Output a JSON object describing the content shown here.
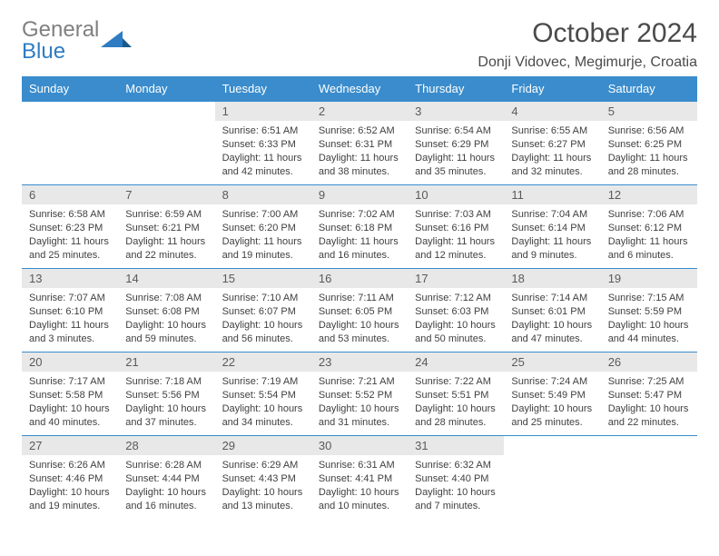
{
  "logo": {
    "text_top": "General",
    "text_bottom": "Blue"
  },
  "title": "October 2024",
  "location": "Donji Vidovec, Megimurje, Croatia",
  "colors": {
    "header_bg": "#3a8ccc",
    "header_text": "#ffffff",
    "daynum_bg": "#e8e8e8",
    "rule": "#3a8ccc",
    "text": "#404040",
    "logo_gray": "#808080",
    "logo_blue": "#2e7cc2"
  },
  "day_headers": [
    "Sunday",
    "Monday",
    "Tuesday",
    "Wednesday",
    "Thursday",
    "Friday",
    "Saturday"
  ],
  "weeks": [
    [
      {
        "n": "",
        "sr": "",
        "ss": "",
        "dl": ""
      },
      {
        "n": "",
        "sr": "",
        "ss": "",
        "dl": ""
      },
      {
        "n": "1",
        "sr": "Sunrise: 6:51 AM",
        "ss": "Sunset: 6:33 PM",
        "dl": "Daylight: 11 hours and 42 minutes."
      },
      {
        "n": "2",
        "sr": "Sunrise: 6:52 AM",
        "ss": "Sunset: 6:31 PM",
        "dl": "Daylight: 11 hours and 38 minutes."
      },
      {
        "n": "3",
        "sr": "Sunrise: 6:54 AM",
        "ss": "Sunset: 6:29 PM",
        "dl": "Daylight: 11 hours and 35 minutes."
      },
      {
        "n": "4",
        "sr": "Sunrise: 6:55 AM",
        "ss": "Sunset: 6:27 PM",
        "dl": "Daylight: 11 hours and 32 minutes."
      },
      {
        "n": "5",
        "sr": "Sunrise: 6:56 AM",
        "ss": "Sunset: 6:25 PM",
        "dl": "Daylight: 11 hours and 28 minutes."
      }
    ],
    [
      {
        "n": "6",
        "sr": "Sunrise: 6:58 AM",
        "ss": "Sunset: 6:23 PM",
        "dl": "Daylight: 11 hours and 25 minutes."
      },
      {
        "n": "7",
        "sr": "Sunrise: 6:59 AM",
        "ss": "Sunset: 6:21 PM",
        "dl": "Daylight: 11 hours and 22 minutes."
      },
      {
        "n": "8",
        "sr": "Sunrise: 7:00 AM",
        "ss": "Sunset: 6:20 PM",
        "dl": "Daylight: 11 hours and 19 minutes."
      },
      {
        "n": "9",
        "sr": "Sunrise: 7:02 AM",
        "ss": "Sunset: 6:18 PM",
        "dl": "Daylight: 11 hours and 16 minutes."
      },
      {
        "n": "10",
        "sr": "Sunrise: 7:03 AM",
        "ss": "Sunset: 6:16 PM",
        "dl": "Daylight: 11 hours and 12 minutes."
      },
      {
        "n": "11",
        "sr": "Sunrise: 7:04 AM",
        "ss": "Sunset: 6:14 PM",
        "dl": "Daylight: 11 hours and 9 minutes."
      },
      {
        "n": "12",
        "sr": "Sunrise: 7:06 AM",
        "ss": "Sunset: 6:12 PM",
        "dl": "Daylight: 11 hours and 6 minutes."
      }
    ],
    [
      {
        "n": "13",
        "sr": "Sunrise: 7:07 AM",
        "ss": "Sunset: 6:10 PM",
        "dl": "Daylight: 11 hours and 3 minutes."
      },
      {
        "n": "14",
        "sr": "Sunrise: 7:08 AM",
        "ss": "Sunset: 6:08 PM",
        "dl": "Daylight: 10 hours and 59 minutes."
      },
      {
        "n": "15",
        "sr": "Sunrise: 7:10 AM",
        "ss": "Sunset: 6:07 PM",
        "dl": "Daylight: 10 hours and 56 minutes."
      },
      {
        "n": "16",
        "sr": "Sunrise: 7:11 AM",
        "ss": "Sunset: 6:05 PM",
        "dl": "Daylight: 10 hours and 53 minutes."
      },
      {
        "n": "17",
        "sr": "Sunrise: 7:12 AM",
        "ss": "Sunset: 6:03 PM",
        "dl": "Daylight: 10 hours and 50 minutes."
      },
      {
        "n": "18",
        "sr": "Sunrise: 7:14 AM",
        "ss": "Sunset: 6:01 PM",
        "dl": "Daylight: 10 hours and 47 minutes."
      },
      {
        "n": "19",
        "sr": "Sunrise: 7:15 AM",
        "ss": "Sunset: 5:59 PM",
        "dl": "Daylight: 10 hours and 44 minutes."
      }
    ],
    [
      {
        "n": "20",
        "sr": "Sunrise: 7:17 AM",
        "ss": "Sunset: 5:58 PM",
        "dl": "Daylight: 10 hours and 40 minutes."
      },
      {
        "n": "21",
        "sr": "Sunrise: 7:18 AM",
        "ss": "Sunset: 5:56 PM",
        "dl": "Daylight: 10 hours and 37 minutes."
      },
      {
        "n": "22",
        "sr": "Sunrise: 7:19 AM",
        "ss": "Sunset: 5:54 PM",
        "dl": "Daylight: 10 hours and 34 minutes."
      },
      {
        "n": "23",
        "sr": "Sunrise: 7:21 AM",
        "ss": "Sunset: 5:52 PM",
        "dl": "Daylight: 10 hours and 31 minutes."
      },
      {
        "n": "24",
        "sr": "Sunrise: 7:22 AM",
        "ss": "Sunset: 5:51 PM",
        "dl": "Daylight: 10 hours and 28 minutes."
      },
      {
        "n": "25",
        "sr": "Sunrise: 7:24 AM",
        "ss": "Sunset: 5:49 PM",
        "dl": "Daylight: 10 hours and 25 minutes."
      },
      {
        "n": "26",
        "sr": "Sunrise: 7:25 AM",
        "ss": "Sunset: 5:47 PM",
        "dl": "Daylight: 10 hours and 22 minutes."
      }
    ],
    [
      {
        "n": "27",
        "sr": "Sunrise: 6:26 AM",
        "ss": "Sunset: 4:46 PM",
        "dl": "Daylight: 10 hours and 19 minutes."
      },
      {
        "n": "28",
        "sr": "Sunrise: 6:28 AM",
        "ss": "Sunset: 4:44 PM",
        "dl": "Daylight: 10 hours and 16 minutes."
      },
      {
        "n": "29",
        "sr": "Sunrise: 6:29 AM",
        "ss": "Sunset: 4:43 PM",
        "dl": "Daylight: 10 hours and 13 minutes."
      },
      {
        "n": "30",
        "sr": "Sunrise: 6:31 AM",
        "ss": "Sunset: 4:41 PM",
        "dl": "Daylight: 10 hours and 10 minutes."
      },
      {
        "n": "31",
        "sr": "Sunrise: 6:32 AM",
        "ss": "Sunset: 4:40 PM",
        "dl": "Daylight: 10 hours and 7 minutes."
      },
      {
        "n": "",
        "sr": "",
        "ss": "",
        "dl": ""
      },
      {
        "n": "",
        "sr": "",
        "ss": "",
        "dl": ""
      }
    ]
  ]
}
